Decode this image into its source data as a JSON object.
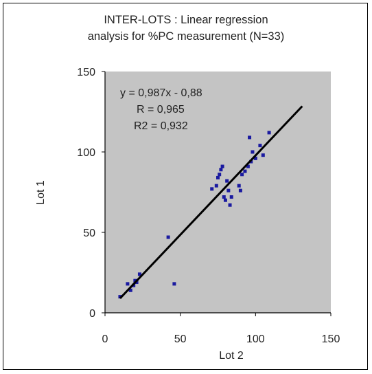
{
  "chart_data": {
    "type": "scatter",
    "title_lines": [
      "INTER-LOTS  : Linear regression",
      "analysis for %PC measurement (N=33)"
    ],
    "xlabel": "Lot 2",
    "ylabel": "Lot 1",
    "xlim": [
      0,
      150
    ],
    "ylim": [
      0,
      150
    ],
    "xticks": [
      0,
      50,
      100,
      150
    ],
    "yticks": [
      0,
      50,
      100,
      150
    ],
    "xtick_labels": [
      "0",
      "50",
      "100",
      "150"
    ],
    "ytick_labels": [
      "0",
      "50",
      "100",
      "150"
    ],
    "grid": false,
    "annotations": [
      "y = 0,987x - 0,88",
      "R = 0,965",
      "R2 = 0,932"
    ],
    "regression": {
      "slope": 0.987,
      "intercept": -0.88,
      "x_range": [
        10,
        131
      ]
    },
    "points": [
      [
        10,
        10
      ],
      [
        15,
        18
      ],
      [
        17,
        14
      ],
      [
        19,
        17
      ],
      [
        20,
        20
      ],
      [
        21,
        19
      ],
      [
        23,
        24
      ],
      [
        42,
        47
      ],
      [
        46,
        18
      ],
      [
        71,
        77
      ],
      [
        74,
        79
      ],
      [
        75,
        84
      ],
      [
        76,
        86
      ],
      [
        77,
        89
      ],
      [
        78,
        91
      ],
      [
        79,
        72
      ],
      [
        80,
        70
      ],
      [
        81,
        82
      ],
      [
        82,
        76
      ],
      [
        83,
        67
      ],
      [
        84,
        72
      ],
      [
        89,
        79
      ],
      [
        90,
        76
      ],
      [
        91,
        86
      ],
      [
        93,
        88
      ],
      [
        95,
        91
      ],
      [
        96,
        109
      ],
      [
        97,
        94
      ],
      [
        98,
        100
      ],
      [
        100,
        96
      ],
      [
        103,
        104
      ],
      [
        105,
        98
      ],
      [
        109,
        112
      ]
    ],
    "colors": {
      "plot_bg": "#c4c4c4",
      "point": "#1a1aa0",
      "line": "#000000",
      "axis": "#000000"
    }
  }
}
